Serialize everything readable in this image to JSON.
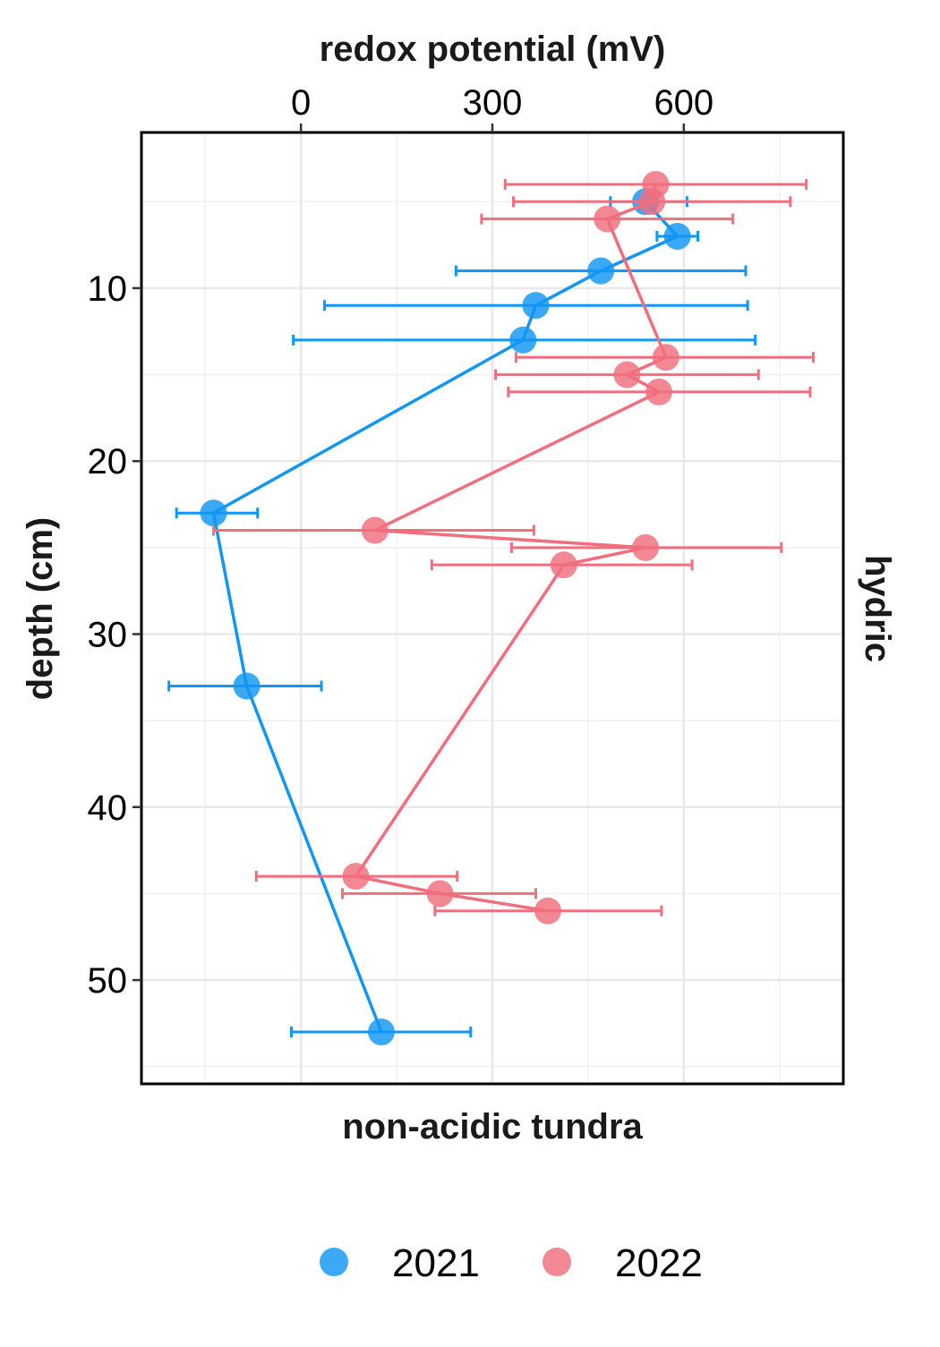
{
  "chart_data": {
    "type": "line",
    "title": "",
    "xlabel": "redox potential (mV)",
    "ylabel": "depth (cm)",
    "facet_bottom_label": "non-acidic tundra",
    "facet_right_label": "hydric",
    "xlim": [
      -250,
      850
    ],
    "ylim": [
      1,
      56
    ],
    "y_reversed": true,
    "x_axis_position": "top",
    "x_ticks": [
      0,
      300,
      600
    ],
    "x_tick_labels": [
      "0",
      "300",
      "600"
    ],
    "y_ticks": [
      10,
      20,
      30,
      40,
      50
    ],
    "y_tick_labels": [
      "10",
      "20",
      "30",
      "40",
      "50"
    ],
    "grid": true,
    "legend_position": "bottom",
    "series": [
      {
        "name": "2021",
        "color": "#1196F5",
        "points": [
          {
            "depth": 5,
            "value": 540,
            "lo": 485,
            "hi": 605
          },
          {
            "depth": 7,
            "value": 590,
            "lo": 558,
            "hi": 622
          },
          {
            "depth": 9,
            "value": 470,
            "lo": 243,
            "hi": 697
          },
          {
            "depth": 11,
            "value": 368,
            "lo": 37,
            "hi": 700
          },
          {
            "depth": 13,
            "value": 348,
            "lo": -12,
            "hi": 712
          },
          {
            "depth": 23,
            "value": -137,
            "lo": -195,
            "hi": -68
          },
          {
            "depth": 33,
            "value": -85,
            "lo": -207,
            "hi": 32
          },
          {
            "depth": 53,
            "value": 126,
            "lo": -15,
            "hi": 266
          }
        ]
      },
      {
        "name": "2022",
        "color": "#F06E7E",
        "points": [
          {
            "depth": 4,
            "value": 556,
            "lo": 320,
            "hi": 792
          },
          {
            "depth": 5,
            "value": 550,
            "lo": 333,
            "hi": 767
          },
          {
            "depth": 6,
            "value": 480,
            "lo": 283,
            "hi": 677
          },
          {
            "depth": 14,
            "value": 572,
            "lo": 337,
            "hi": 803
          },
          {
            "depth": 15,
            "value": 511,
            "lo": 305,
            "hi": 717
          },
          {
            "depth": 16,
            "value": 561,
            "lo": 325,
            "hi": 798
          },
          {
            "depth": 24,
            "value": 116,
            "lo": -137,
            "hi": 365
          },
          {
            "depth": 25,
            "value": 540,
            "lo": 330,
            "hi": 753
          },
          {
            "depth": 26,
            "value": 412,
            "lo": 205,
            "hi": 613
          },
          {
            "depth": 44,
            "value": 86,
            "lo": -70,
            "hi": 245
          },
          {
            "depth": 45,
            "value": 218,
            "lo": 65,
            "hi": 368
          },
          {
            "depth": 46,
            "value": 387,
            "lo": 210,
            "hi": 565
          }
        ]
      }
    ]
  }
}
